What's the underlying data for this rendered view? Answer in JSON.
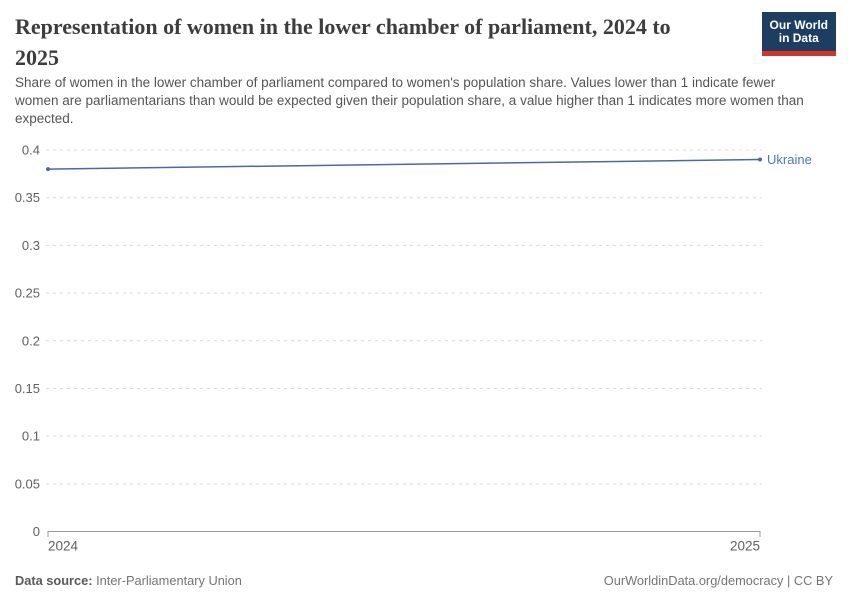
{
  "header": {
    "title_lines": [
      "Representation of women in the lower chamber of parliament, 2024 to",
      "2025"
    ],
    "subtitle": "Share of women in the lower chamber of parliament compared to women's population share. Values lower than 1 indicate fewer women are parliamentarians than would be expected given their population share, a value higher than 1 indicates more women than expected.",
    "logo": {
      "line1": "Our World",
      "line2": "in Data",
      "bg_color": "#1d3d63",
      "accent_color": "#d0342a"
    }
  },
  "chart_data": {
    "type": "line",
    "title": "Representation of women in the lower chamber of parliament, 2024 to 2025",
    "x": [
      2024,
      2025
    ],
    "series": [
      {
        "name": "Ukraine",
        "values": [
          0.38,
          0.39
        ],
        "color": "#4c6a9c",
        "label_color": "#4b77bd"
      }
    ],
    "xlabel": "",
    "ylabel": "",
    "ylim": [
      0,
      0.4
    ],
    "yticks": [
      {
        "value": 0,
        "label": "0"
      },
      {
        "value": 0.05,
        "label": "0.05"
      },
      {
        "value": 0.1,
        "label": "0.1"
      },
      {
        "value": 0.15,
        "label": "0.15"
      },
      {
        "value": 0.2,
        "label": "0.2"
      },
      {
        "value": 0.25,
        "label": "0.25"
      },
      {
        "value": 0.3,
        "label": "0.3"
      },
      {
        "value": 0.35,
        "label": "0.35"
      },
      {
        "value": 0.4,
        "label": "0.4"
      }
    ],
    "xticks": [
      {
        "value": 2024,
        "label": "2024"
      },
      {
        "value": 2025,
        "label": "2025"
      }
    ],
    "grid": "horizontal-dashed",
    "legend_position": "right-of-line-end"
  },
  "footer": {
    "source_label": "Data source:",
    "source_value": " Inter-Parliamentary Union",
    "right_text": "OurWorldinData.org/democracy | CC BY"
  },
  "colors": {
    "grid": "#d9d9d9",
    "axis": "#999999",
    "tick_label": "#606060",
    "title": "#3d3d3d",
    "subtitle": "#555555",
    "footer": "#757575"
  }
}
